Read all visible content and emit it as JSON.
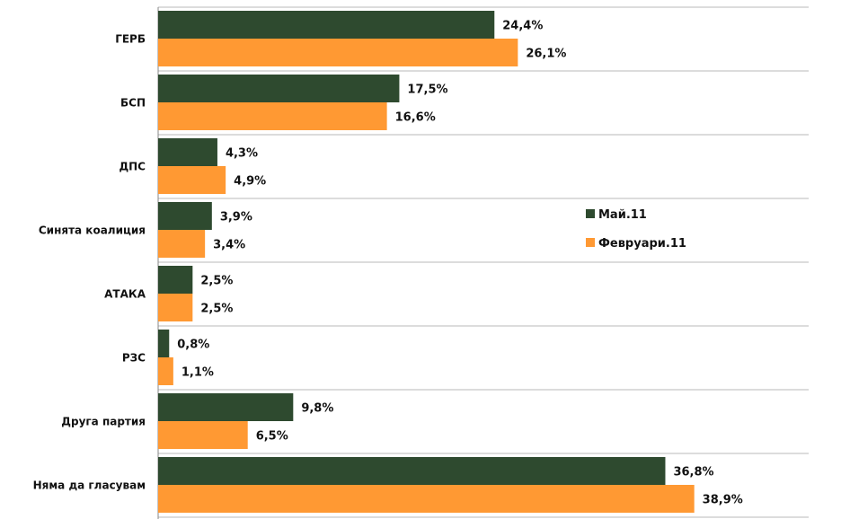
{
  "chart_data": {
    "type": "bar",
    "orientation": "horizontal",
    "categories": [
      "ГЕРБ",
      "БСП",
      "ДПС",
      "Синята коалиция",
      "АТАКА",
      "РЗС",
      "Друга партия",
      "Няма да гласувам"
    ],
    "series": [
      {
        "name": "Май.11",
        "color": "#2e4a2f",
        "values": [
          24.4,
          17.5,
          4.3,
          3.9,
          2.5,
          0.8,
          9.8,
          36.8
        ],
        "labels": [
          "24,4%",
          "17,5%",
          "4,3%",
          "3,9%",
          "2,5%",
          "0,8%",
          "9,8%",
          "36,8%"
        ]
      },
      {
        "name": "Февруари.11",
        "color": "#ff9933",
        "values": [
          26.1,
          16.6,
          4.9,
          3.4,
          2.5,
          1.1,
          6.5,
          38.9
        ],
        "labels": [
          "26,1%",
          "16,6%",
          "4,9%",
          "3,4%",
          "2,5%",
          "1,1%",
          "6,5%",
          "38,9%"
        ]
      }
    ],
    "xlim": [
      0,
      47.2
    ],
    "legend_position": "right",
    "grid": "horizontal separators between categories"
  }
}
